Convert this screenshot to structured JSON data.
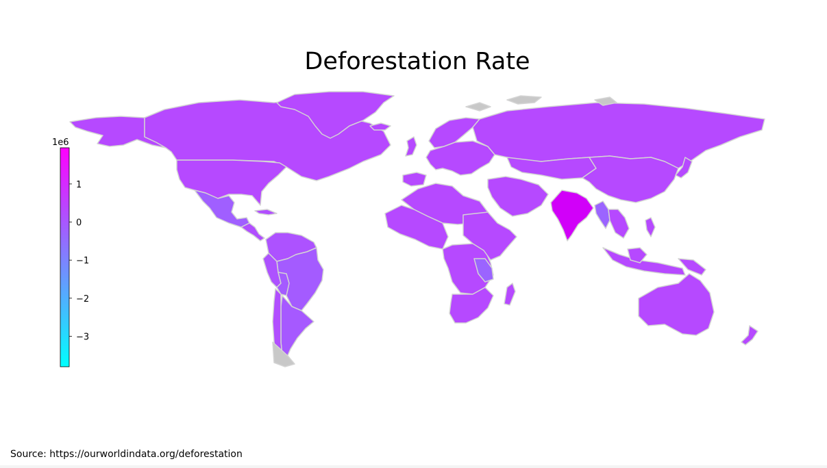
{
  "title": "Deforestation Rate",
  "source": "Source: https://ourworldindata.org/deforestation",
  "colorbar": {
    "exponent": "1e6",
    "ticks": [
      {
        "value": 1,
        "label": "1"
      },
      {
        "value": 0,
        "label": "0"
      },
      {
        "value": -1,
        "label": "−1"
      },
      {
        "value": -2,
        "label": "−2"
      },
      {
        "value": -3,
        "label": "−3"
      }
    ],
    "range": [
      -3.8,
      1.95
    ],
    "colormap": "cool",
    "colors": {
      "min": "#00ffff",
      "max": "#ff00ff"
    }
  },
  "colors": {
    "default_country": "#b526fb",
    "no_data": "#c8c8c8",
    "border": "#d4d4d4"
  },
  "countries": [
    {
      "name": "Alaska",
      "value": 0.3
    },
    {
      "name": "Canada",
      "value": 0.3
    },
    {
      "name": "Greenland",
      "value": 0.3
    },
    {
      "name": "United States",
      "value": 0.3
    },
    {
      "name": "Mexico",
      "value": -0.2
    },
    {
      "name": "Central America",
      "value": 0.2
    },
    {
      "name": "Cuba",
      "value": 0.2
    },
    {
      "name": "Colombia / Venezuela",
      "value": 0.1
    },
    {
      "name": "Brazil",
      "value": -0.1
    },
    {
      "name": "Peru",
      "value": 0.1
    },
    {
      "name": "Bolivia",
      "value": -0.1
    },
    {
      "name": "Argentina",
      "value": -0.05
    },
    {
      "name": "Chile",
      "value": 0.2
    },
    {
      "name": "Europe",
      "value": 0.3
    },
    {
      "name": "Scandinavia",
      "value": 0.3
    },
    {
      "name": "United Kingdom",
      "value": 0.3
    },
    {
      "name": "Iceland",
      "value": 0.3
    },
    {
      "name": "Russia",
      "value": 0.3
    },
    {
      "name": "Central Asia",
      "value": 0.3
    },
    {
      "name": "Middle East",
      "value": 0.3
    },
    {
      "name": "China",
      "value": 0.3
    },
    {
      "name": "Japan",
      "value": 0.3
    },
    {
      "name": "India",
      "value": 0.8
    },
    {
      "name": "Myanmar",
      "value": -0.3
    },
    {
      "name": "Southeast Asia",
      "value": 0.3
    },
    {
      "name": "Indonesia",
      "value": 0.3
    },
    {
      "name": "Philippines",
      "value": 0.3
    },
    {
      "name": "Papua New Guinea",
      "value": 0.3
    },
    {
      "name": "North Africa",
      "value": 0.3
    },
    {
      "name": "West Africa",
      "value": 0.3
    },
    {
      "name": "Central Africa",
      "value": 0.3
    },
    {
      "name": "Tanzania",
      "value": -0.3
    },
    {
      "name": "Horn of Africa",
      "value": 0.3
    },
    {
      "name": "Southern Africa",
      "value": 0.3
    },
    {
      "name": "Madagascar",
      "value": 0.3
    },
    {
      "name": "Australia",
      "value": 0.3
    },
    {
      "name": "New Zealand",
      "value": 0.3
    }
  ]
}
